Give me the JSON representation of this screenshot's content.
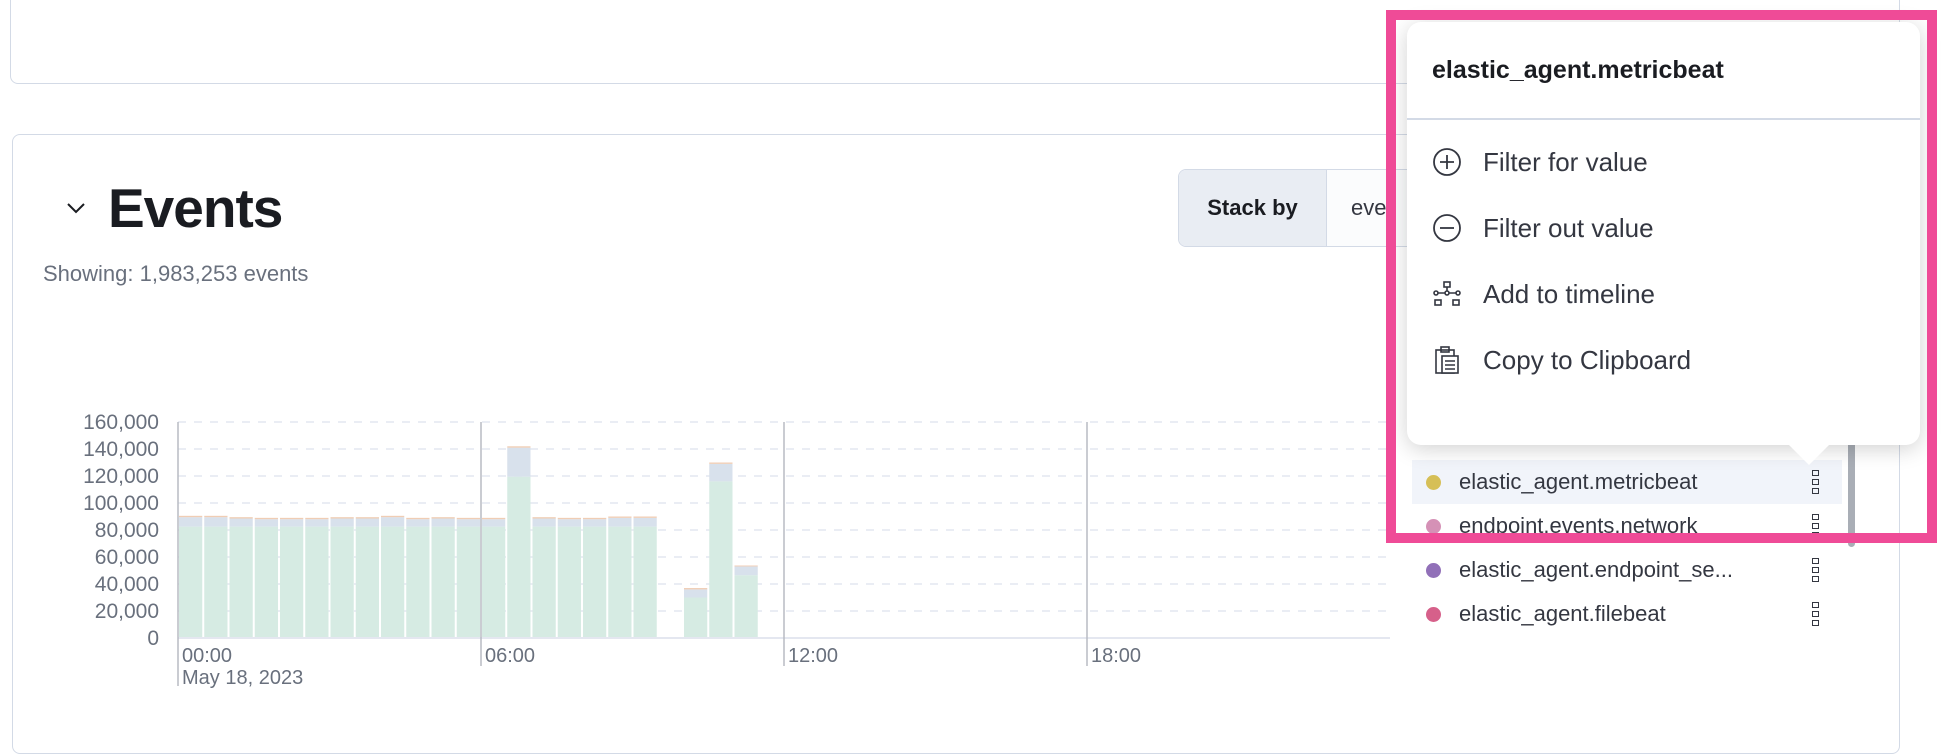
{
  "events": {
    "title": "Events",
    "showing": "Showing: 1,983,253 events",
    "stack_by_label": "Stack by",
    "stack_by_value": "eve"
  },
  "chart_data": {
    "type": "bar",
    "stacked": true,
    "x": [
      "00:00",
      "00:30",
      "01:00",
      "01:30",
      "02:00",
      "02:30",
      "03:00",
      "03:30",
      "04:00",
      "04:30",
      "05:00",
      "05:30",
      "06:00",
      "06:30",
      "07:00",
      "07:30",
      "08:00",
      "08:30",
      "09:00",
      "09:30",
      "10:00",
      "10:30",
      "11:00"
    ],
    "series": [
      {
        "color": "#d6ebe3",
        "values": [
          82500,
          82500,
          82500,
          82500,
          82500,
          82500,
          82500,
          82500,
          82500,
          82500,
          82500,
          82500,
          82500,
          119500,
          82500,
          82500,
          82500,
          82500,
          82500,
          0,
          30000,
          116000,
          46500
        ]
      },
      {
        "color": "#d8e1ec",
        "values": [
          7000,
          7000,
          6000,
          5500,
          5500,
          5500,
          6000,
          6000,
          7000,
          5500,
          6000,
          5500,
          5500,
          21500,
          6000,
          5500,
          5500,
          6500,
          6500,
          0,
          6000,
          13000,
          6500
        ]
      },
      {
        "color": "#f0cdb4",
        "values": [
          1000,
          1000,
          1000,
          1000,
          1000,
          1000,
          1000,
          1000,
          1000,
          1000,
          1000,
          1000,
          1000,
          1000,
          1000,
          1000,
          1000,
          1000,
          1000,
          0,
          1000,
          1000,
          700
        ]
      }
    ],
    "ylim": [
      0,
      160000
    ],
    "yticks": [
      "0",
      "20,000",
      "40,000",
      "60,000",
      "80,000",
      "100,000",
      "120,000",
      "140,000",
      "160,000"
    ],
    "xticks": [
      "00:00",
      "06:00",
      "12:00",
      "18:00"
    ],
    "x_date_label": "May 18, 2023",
    "xrange": [
      "00:00",
      "24:00"
    ],
    "grid": "horizontal dashed"
  },
  "legend": [
    {
      "label": "elastic_agent.metricbeat",
      "color": "#d6bf57"
    },
    {
      "label": "endpoint.events.network",
      "color": "#d591b6"
    },
    {
      "label": "elastic_agent.endpoint_se...",
      "color": "#9170b8"
    },
    {
      "label": "elastic_agent.filebeat",
      "color": "#d6608a"
    }
  ],
  "popover": {
    "title": "elastic_agent.metricbeat",
    "items": [
      {
        "label": "Filter for value",
        "icon": "plus-circle-icon"
      },
      {
        "label": "Filter out value",
        "icon": "minus-circle-icon"
      },
      {
        "label": "Add to timeline",
        "icon": "timeline-icon"
      },
      {
        "label": "Copy to Clipboard",
        "icon": "clipboard-icon"
      }
    ]
  },
  "highlight_color": "#ef4b97"
}
